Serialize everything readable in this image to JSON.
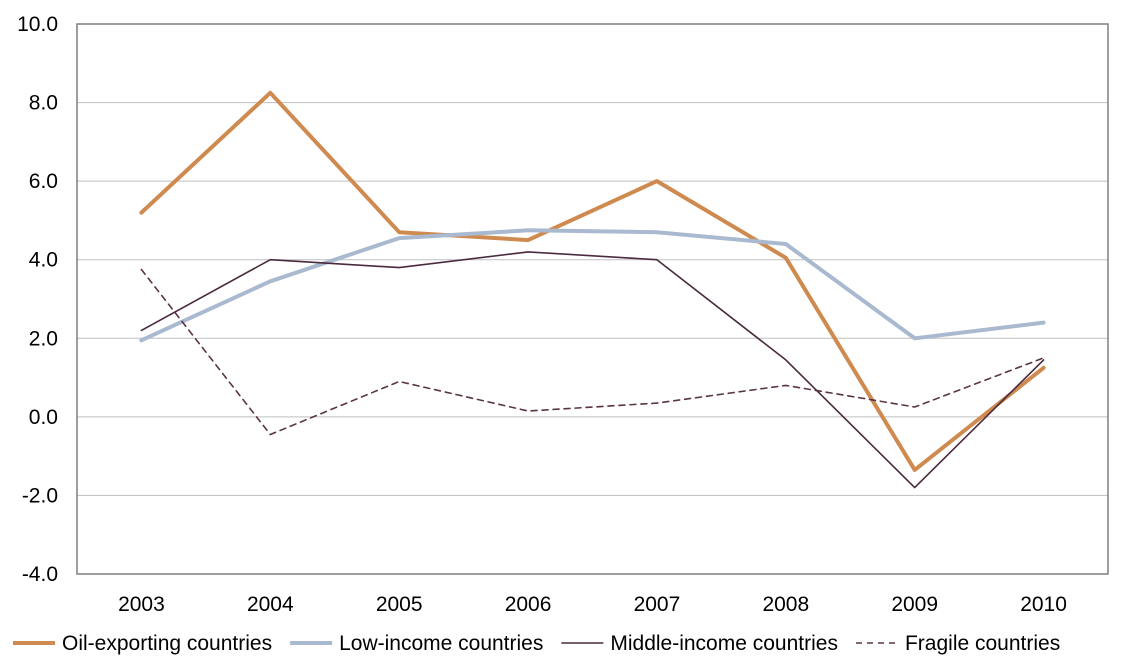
{
  "chart_data": {
    "type": "line",
    "title": "",
    "xlabel": "",
    "ylabel": "",
    "categories": [
      "2003",
      "2004",
      "2005",
      "2006",
      "2007",
      "2008",
      "2009",
      "2010"
    ],
    "y_ticks": [
      "10.0",
      "8.0",
      "6.0",
      "4.0",
      "2.0",
      "0.0",
      "-2.0",
      "-4.0"
    ],
    "ylim": [
      -4,
      10
    ],
    "grid": "horizontal",
    "legend_position": "bottom",
    "series": [
      {
        "name": "Oil-exporting countries",
        "color": "#cf8a4f",
        "style": "thick-solid",
        "values": [
          5.2,
          8.25,
          4.7,
          4.5,
          6.0,
          4.05,
          -1.35,
          1.25
        ]
      },
      {
        "name": "Low-income countries",
        "color": "#a9b9cf",
        "style": "thick-solid",
        "values": [
          1.95,
          3.45,
          4.55,
          4.75,
          4.7,
          4.4,
          2.0,
          2.4
        ]
      },
      {
        "name": "Middle-income countries",
        "color": "#4a2a3e",
        "style": "thin-solid",
        "values": [
          2.2,
          4.0,
          3.8,
          4.2,
          4.0,
          1.45,
          -1.8,
          1.45
        ]
      },
      {
        "name": "Fragile countries",
        "color": "#5a3545",
        "style": "thin-dashed",
        "values": [
          3.75,
          -0.45,
          0.9,
          0.15,
          0.35,
          0.8,
          0.25,
          1.5
        ]
      }
    ]
  }
}
